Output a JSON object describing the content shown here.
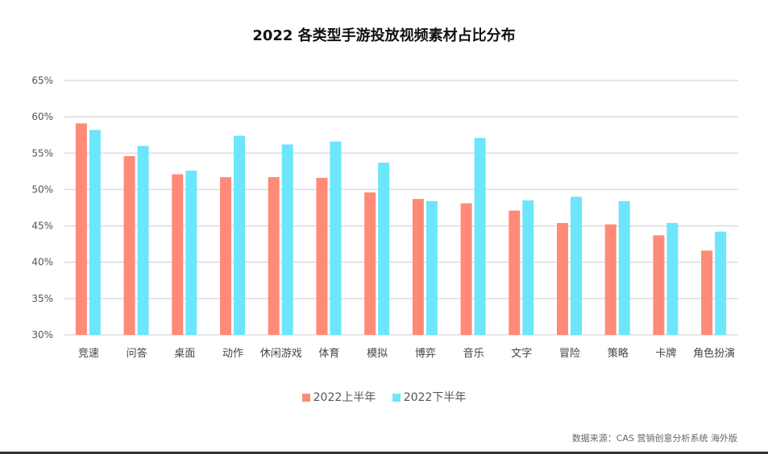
{
  "chart_data": {
    "type": "bar",
    "title": "2022 各类型手游投放视频素材占比分布",
    "categories": [
      "竞速",
      "问答",
      "桌面",
      "动作",
      "休闲游戏",
      "体育",
      "模拟",
      "博弈",
      "音乐",
      "文字",
      "冒险",
      "策略",
      "卡牌",
      "角色扮演"
    ],
    "series": [
      {
        "name": "2022上半年",
        "color": "#FF8A78",
        "values": [
          59.1,
          54.6,
          52.1,
          51.7,
          51.7,
          51.6,
          49.6,
          48.7,
          48.1,
          47.1,
          45.4,
          45.2,
          43.7,
          41.6
        ]
      },
      {
        "name": "2022下半年",
        "color": "#6CE6FB",
        "values": [
          58.2,
          56.0,
          52.6,
          57.4,
          56.2,
          56.6,
          53.7,
          48.4,
          57.1,
          48.5,
          49.0,
          48.4,
          45.4,
          44.2
        ]
      }
    ],
    "ylim": [
      30,
      65
    ],
    "yticks": [
      "30%",
      "35%",
      "40%",
      "45%",
      "50%",
      "55%",
      "60%",
      "65%"
    ],
    "grid": true,
    "legend": "bottom",
    "source": "数据来源：CAS 营销创意分析系统 海外版"
  }
}
